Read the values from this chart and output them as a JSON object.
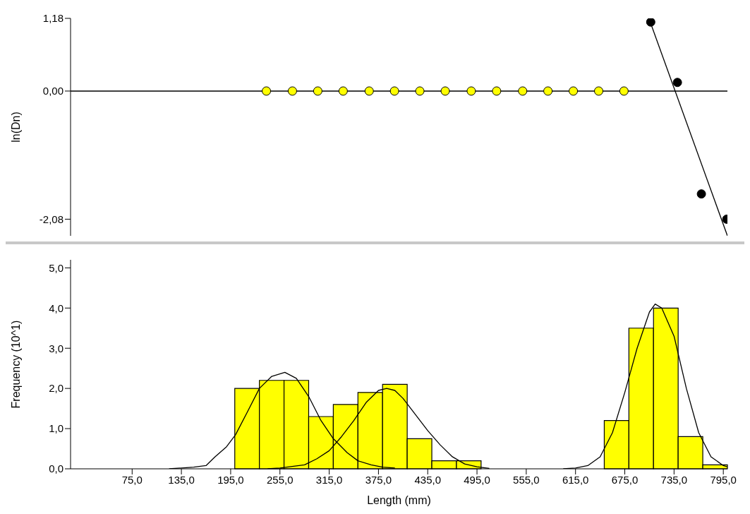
{
  "chart_data": [
    {
      "type": "scatter",
      "ylabel": "ln(Dn)",
      "xlim": [
        0,
        800
      ],
      "ylim": [
        -2.35,
        1.18
      ],
      "yticks": [
        {
          "value": -2.08,
          "label": "-2,08"
        },
        {
          "value": 0,
          "label": "0,00"
        },
        {
          "value": 1.18,
          "label": "1,18"
        }
      ],
      "tick_labels": "y",
      "marker": "circle",
      "ref_lines": [
        {
          "axis": "y",
          "value": 0,
          "color": "#000000"
        }
      ],
      "series": [
        {
          "color": "#ffff00",
          "x": [
            238.5,
            270.2,
            301.1,
            332,
            363.7,
            394.5,
            425.4,
            456.3,
            488,
            518.9,
            550.6,
            581.4,
            612.3,
            643.2,
            674
          ],
          "values": [
            0,
            0,
            0,
            0,
            0,
            0,
            0,
            0,
            0,
            0,
            0,
            0,
            0,
            0,
            0
          ]
        },
        {
          "color": "#000000",
          "x": [
            706.6,
            739.1,
            768.3,
            799.2
          ],
          "values": [
            1.12,
            0.14,
            -1.67,
            -2.08
          ]
        },
        {
          "type": "line",
          "color": "#000000",
          "marker": "none",
          "x": [
            706,
            800
          ],
          "values": [
            1.12,
            -2.35
          ]
        }
      ]
    },
    {
      "type": "histogram",
      "xlabel": "Length (mm)",
      "ylabel": "Frequency (10^1)",
      "color": "#ffff00",
      "xlim": [
        0,
        800
      ],
      "ylim": [
        0,
        5.2
      ],
      "xticks": [
        {
          "value": 75,
          "label": "75,0"
        },
        {
          "value": 135,
          "label": "135,0"
        },
        {
          "value": 195,
          "label": "195,0"
        },
        {
          "value": 255,
          "label": "255,0"
        },
        {
          "value": 315,
          "label": "315,0"
        },
        {
          "value": 375,
          "label": "375,0"
        },
        {
          "value": 435,
          "label": "435,0"
        },
        {
          "value": 495,
          "label": "495,0"
        },
        {
          "value": 555,
          "label": "555,0"
        },
        {
          "value": 615,
          "label": "615,0"
        },
        {
          "value": 675,
          "label": "675,0"
        },
        {
          "value": 735,
          "label": "735,0"
        },
        {
          "value": 795,
          "label": "795,0"
        }
      ],
      "yticks": [
        {
          "value": 0,
          "label": "0,0"
        },
        {
          "value": 1,
          "label": "1,0"
        },
        {
          "value": 2,
          "label": "2,0"
        },
        {
          "value": 3,
          "label": "3,0"
        },
        {
          "value": 4,
          "label": "4,0"
        },
        {
          "value": 5,
          "label": "5,0"
        }
      ],
      "bins": [
        200,
        230,
        260,
        290,
        320,
        350,
        380,
        410,
        440,
        470,
        500,
        530,
        560,
        590,
        620,
        650,
        680,
        710,
        740,
        770,
        800
      ],
      "values": [
        2.0,
        2.2,
        2.2,
        1.3,
        1.6,
        1.9,
        2.1,
        0.75,
        0.2,
        0.2,
        0,
        0,
        0,
        0,
        0,
        1.2,
        3.5,
        4.0,
        0.8,
        0.1
      ],
      "series": [
        {
          "type": "line",
          "color": "#000000",
          "marker": "none",
          "x": [
            120,
            135,
            150,
            165,
            176,
            190,
            201,
            215,
            230,
            245,
            261,
            275,
            290,
            305,
            320,
            337,
            350,
            366,
            380,
            395
          ],
          "values": [
            0,
            0.02,
            0.04,
            0.08,
            0.3,
            0.55,
            0.85,
            1.4,
            2.0,
            2.3,
            2.4,
            2.25,
            1.8,
            1.2,
            0.75,
            0.4,
            0.2,
            0.1,
            0.04,
            0.02
          ]
        },
        {
          "type": "line",
          "color": "#000000",
          "marker": "none",
          "x": [
            240,
            255,
            285,
            300,
            315,
            330,
            345,
            360,
            375,
            385,
            395,
            405,
            420,
            435,
            450,
            465,
            480,
            495,
            510
          ],
          "values": [
            0,
            0.02,
            0.1,
            0.25,
            0.45,
            0.8,
            1.2,
            1.65,
            1.95,
            2.0,
            1.95,
            1.75,
            1.35,
            0.95,
            0.6,
            0.3,
            0.12,
            0.05,
            0.01
          ]
        },
        {
          "type": "line",
          "color": "#000000",
          "marker": "none",
          "x": [
            600,
            615,
            630,
            645,
            660,
            675,
            690,
            705,
            712,
            720,
            735,
            750,
            765,
            780,
            795,
            800
          ],
          "values": [
            0,
            0.02,
            0.08,
            0.3,
            0.9,
            1.9,
            3.0,
            3.9,
            4.1,
            4.0,
            3.3,
            2.0,
            0.9,
            0.3,
            0.08,
            0.05
          ]
        }
      ]
    }
  ]
}
